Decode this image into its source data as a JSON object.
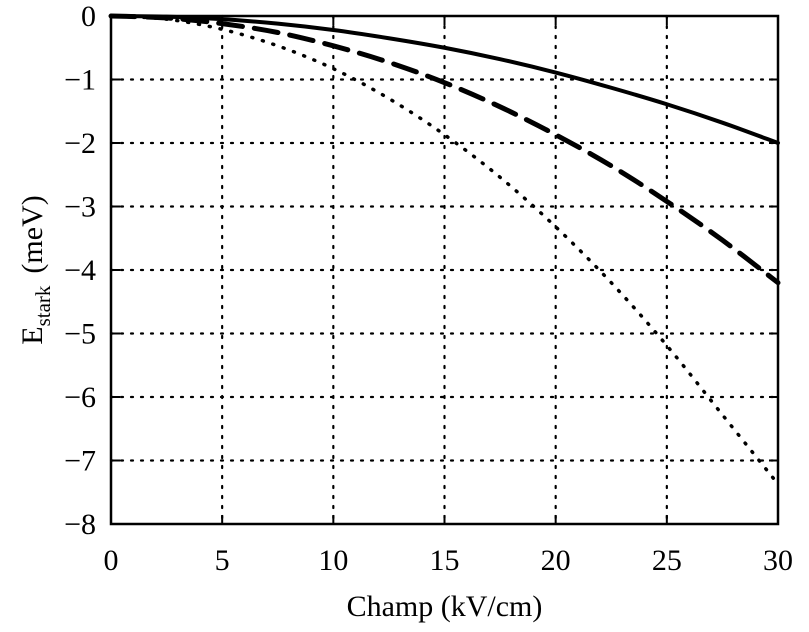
{
  "chart_data": {
    "type": "line",
    "title": "",
    "xlabel": "Champ (kV/cm)",
    "ylabel": {
      "main": "E",
      "subscript": "stark",
      "unit": "(meV)"
    },
    "xlim": [
      0,
      30
    ],
    "ylim": [
      -8,
      0
    ],
    "x_ticks": [
      0,
      5,
      10,
      15,
      20,
      25,
      30
    ],
    "y_ticks": [
      0,
      -1,
      -2,
      -3,
      -4,
      -5,
      -6,
      -7,
      -8
    ],
    "x_tick_labels": [
      "0",
      "5",
      "10",
      "15",
      "20",
      "25",
      "30"
    ],
    "y_tick_labels": [
      "0",
      "−1",
      "−2",
      "−3",
      "−4",
      "−5",
      "−6",
      "−7",
      "−8"
    ],
    "grid": true,
    "grid_style": "dotted",
    "legend": "none",
    "series": [
      {
        "line_style": "solid",
        "color": "#000000",
        "x": [
          0,
          2.5,
          5,
          7.5,
          10,
          12.5,
          15,
          17.5,
          20,
          22.5,
          25,
          27.5,
          30
        ],
        "y": [
          0,
          -0.01,
          -0.05,
          -0.12,
          -0.22,
          -0.35,
          -0.5,
          -0.68,
          -0.89,
          -1.13,
          -1.39,
          -1.68,
          -2.0
        ]
      },
      {
        "line_style": "dashed",
        "color": "#000000",
        "x": [
          0,
          2.5,
          5,
          7.5,
          10,
          12.5,
          15,
          17.5,
          20,
          22.5,
          25,
          27.5,
          30
        ],
        "y": [
          0,
          -0.03,
          -0.12,
          -0.26,
          -0.47,
          -0.73,
          -1.05,
          -1.43,
          -1.87,
          -2.36,
          -2.92,
          -3.53,
          -4.2
        ]
      },
      {
        "line_style": "dotted",
        "color": "#000000",
        "x": [
          0,
          2.5,
          5,
          7.5,
          10,
          12.5,
          15,
          17.5,
          20,
          22.5,
          25,
          27.5,
          30
        ],
        "y": [
          0,
          -0.05,
          -0.21,
          -0.47,
          -0.83,
          -1.3,
          -1.87,
          -2.54,
          -3.32,
          -4.2,
          -5.19,
          -6.28,
          -7.37
        ]
      }
    ]
  }
}
